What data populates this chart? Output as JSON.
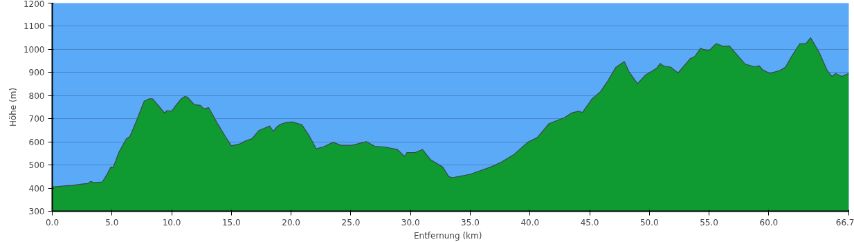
{
  "chart_data": {
    "type": "area",
    "xlabel": "Entfernung   (km)",
    "ylabel": "Höhe (m)",
    "x": [
      0,
      1.2,
      1.7,
      2.5,
      3.0,
      3.2,
      3.5,
      4.2,
      4.6,
      4.9,
      5.1,
      5.6,
      6.2,
      6.5,
      7.0,
      7.7,
      8.1,
      8.4,
      8.9,
      9.4,
      9.6,
      10.0,
      10.4,
      10.8,
      11.1,
      11.3,
      11.9,
      12.4,
      12.7,
      13.1,
      13.9,
      14.5,
      15.0,
      15.7,
      16.2,
      16.7,
      17.3,
      18.0,
      18.2,
      18.5,
      18.8,
      19.1,
      19.6,
      20.1,
      20.9,
      21.5,
      22.1,
      22.7,
      23.5,
      24.2,
      25.1,
      26.3,
      27.0,
      27.8,
      28.9,
      29.5,
      29.7,
      30.4,
      31.0,
      31.7,
      32.7,
      33.2,
      33.5,
      35.0,
      36.7,
      37.6,
      38.7,
      39.8,
      40.6,
      41.6,
      42.9,
      43.5,
      44.1,
      44.4,
      45.2,
      45.9,
      46.5,
      47.2,
      47.9,
      48.3,
      49.0,
      49.7,
      50.6,
      50.9,
      51.2,
      51.8,
      52.4,
      53.4,
      53.8,
      54.3,
      54.5,
      55.0,
      55.6,
      56.2,
      56.7,
      57.3,
      58.0,
      58.8,
      59.2,
      59.5,
      60.1,
      60.9,
      61.4,
      61.9,
      62.6,
      63.1,
      63.5,
      64.2,
      64.9,
      65.3,
      65.6,
      66.1,
      66.7
    ],
    "series": [
      {
        "color": "#109a32",
        "values": [
          405,
          410,
          412,
          418,
          420,
          429,
          424,
          427,
          461,
          491,
          489,
          557,
          613,
          623,
          684,
          776,
          786,
          786,
          756,
          725,
          735,
          733,
          761,
          786,
          796,
          794,
          761,
          758,
          743,
          748,
          674,
          623,
          583,
          591,
          605,
          613,
          649,
          664,
          669,
          646,
          664,
          676,
          684,
          686,
          674,
          628,
          570,
          578,
          598,
          585,
          585,
          601,
          581,
          578,
          567,
          537,
          554,
          554,
          567,
          522,
          491,
          450,
          445,
          460,
          491,
          512,
          547,
          598,
          618,
          679,
          705,
          725,
          733,
          727,
          786,
          817,
          862,
          923,
          947,
          903,
          852,
          890,
          918,
          939,
          928,
          923,
          898,
          959,
          969,
          1005,
          1000,
          995,
          1025,
          1013,
          1015,
          979,
          937,
          925,
          929,
          911,
          896,
          908,
          923,
          969,
          1025,
          1025,
          1050,
          989,
          908,
          883,
          896,
          883,
          896
        ]
      }
    ],
    "xlim": [
      0,
      66.7
    ],
    "ylim": [
      300,
      1200
    ],
    "xticks": [
      {
        "value": 0,
        "label": "0.0"
      },
      {
        "value": 5,
        "label": "5.0"
      },
      {
        "value": 10,
        "label": "10.0"
      },
      {
        "value": 15,
        "label": "15.0"
      },
      {
        "value": 20,
        "label": "20.0"
      },
      {
        "value": 25,
        "label": "25.0"
      },
      {
        "value": 30,
        "label": "30.0"
      },
      {
        "value": 35,
        "label": "35.0"
      },
      {
        "value": 40,
        "label": "40.0"
      },
      {
        "value": 45,
        "label": "45.0"
      },
      {
        "value": 50,
        "label": "50.0"
      },
      {
        "value": 55,
        "label": "55.0"
      },
      {
        "value": 60,
        "label": "60.0"
      },
      {
        "value": 66.7,
        "label": "66.7"
      }
    ],
    "yticks": [
      300,
      400,
      500,
      600,
      700,
      800,
      900,
      1000,
      1100,
      1200
    ],
    "grid": "y"
  }
}
